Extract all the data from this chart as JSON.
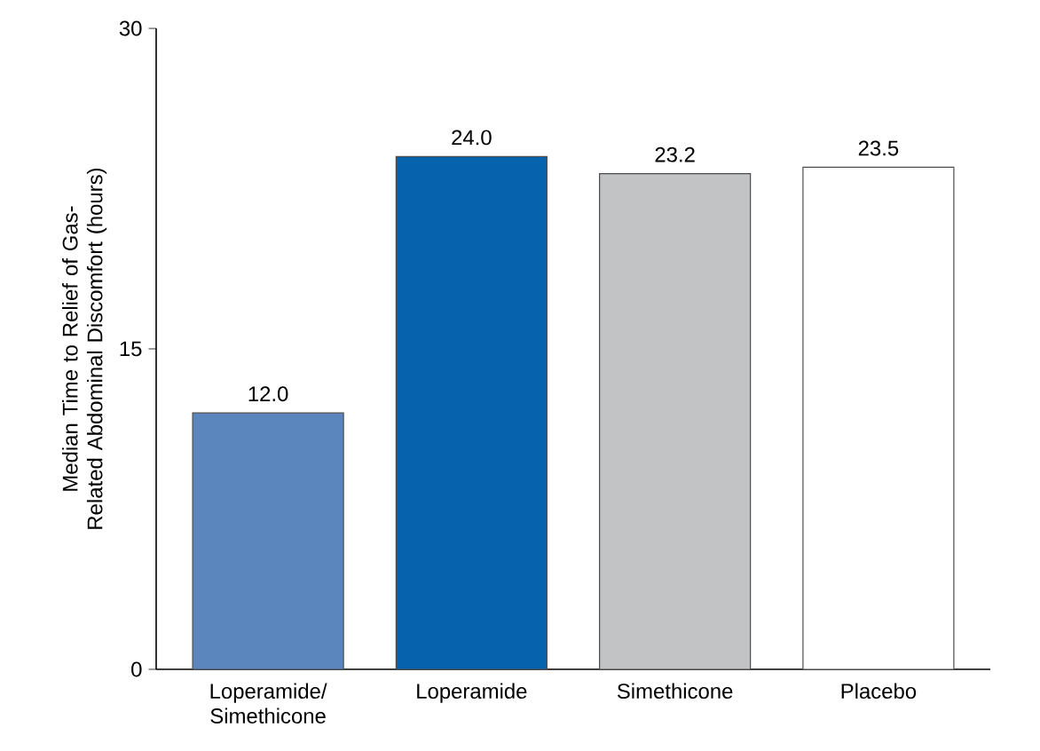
{
  "chart_data": {
    "type": "bar",
    "ylabel": "Median Time to Relief of Gas-Related Abdominal Discomfort (hours)",
    "categories": [
      "Loperamide/ Simethicone",
      "Loperamide",
      "Simethicone",
      "Placebo"
    ],
    "values": [
      12.0,
      24.0,
      23.2,
      23.5
    ],
    "value_labels": [
      "12.0",
      "24.0",
      "23.2",
      "23.5"
    ],
    "colors": [
      "#5b86bd",
      "#0762ad",
      "#c2c3c5",
      "#ffffff"
    ],
    "ylim": [
      0,
      30
    ],
    "yticks": [
      0,
      15,
      30
    ]
  }
}
